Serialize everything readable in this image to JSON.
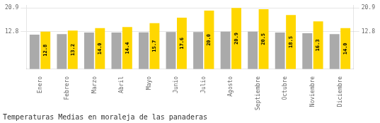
{
  "chart_data": {
    "type": "bar",
    "title": "Temperaturas Medias en moraleja de las panaderas",
    "categories": [
      "Enero",
      "Febrero",
      "Marzo",
      "Abril",
      "Mayo",
      "Junio",
      "Julio",
      "Agosto",
      "Septiembre",
      "Octubre",
      "Noviembre",
      "Diciembre"
    ],
    "series": [
      {
        "color": "#AAAAAA",
        "values": [
          11.8,
          12.0,
          12.5,
          12.5,
          12.6,
          12.7,
          12.7,
          12.8,
          12.8,
          12.5,
          12.3,
          12.0
        ]
      },
      {
        "color": "#FFD700",
        "values": [
          12.8,
          13.2,
          14.0,
          14.4,
          15.7,
          17.6,
          20.0,
          20.9,
          20.5,
          18.5,
          16.3,
          14.0
        ],
        "value_labels": [
          "12.8",
          "13.2",
          "14.0",
          "14.4",
          "15.7",
          "17.6",
          "20.0",
          "20.9",
          "20.5",
          "18.5",
          "16.3",
          "14.0"
        ],
        "data_labels": true
      }
    ],
    "ylim": [
      0,
      21.736
    ],
    "yticks": [
      12.8,
      20.9
    ],
    "y2lim": [
      0,
      21.736
    ],
    "y2ticks": [
      12.8,
      20.9
    ],
    "grid": true
  }
}
